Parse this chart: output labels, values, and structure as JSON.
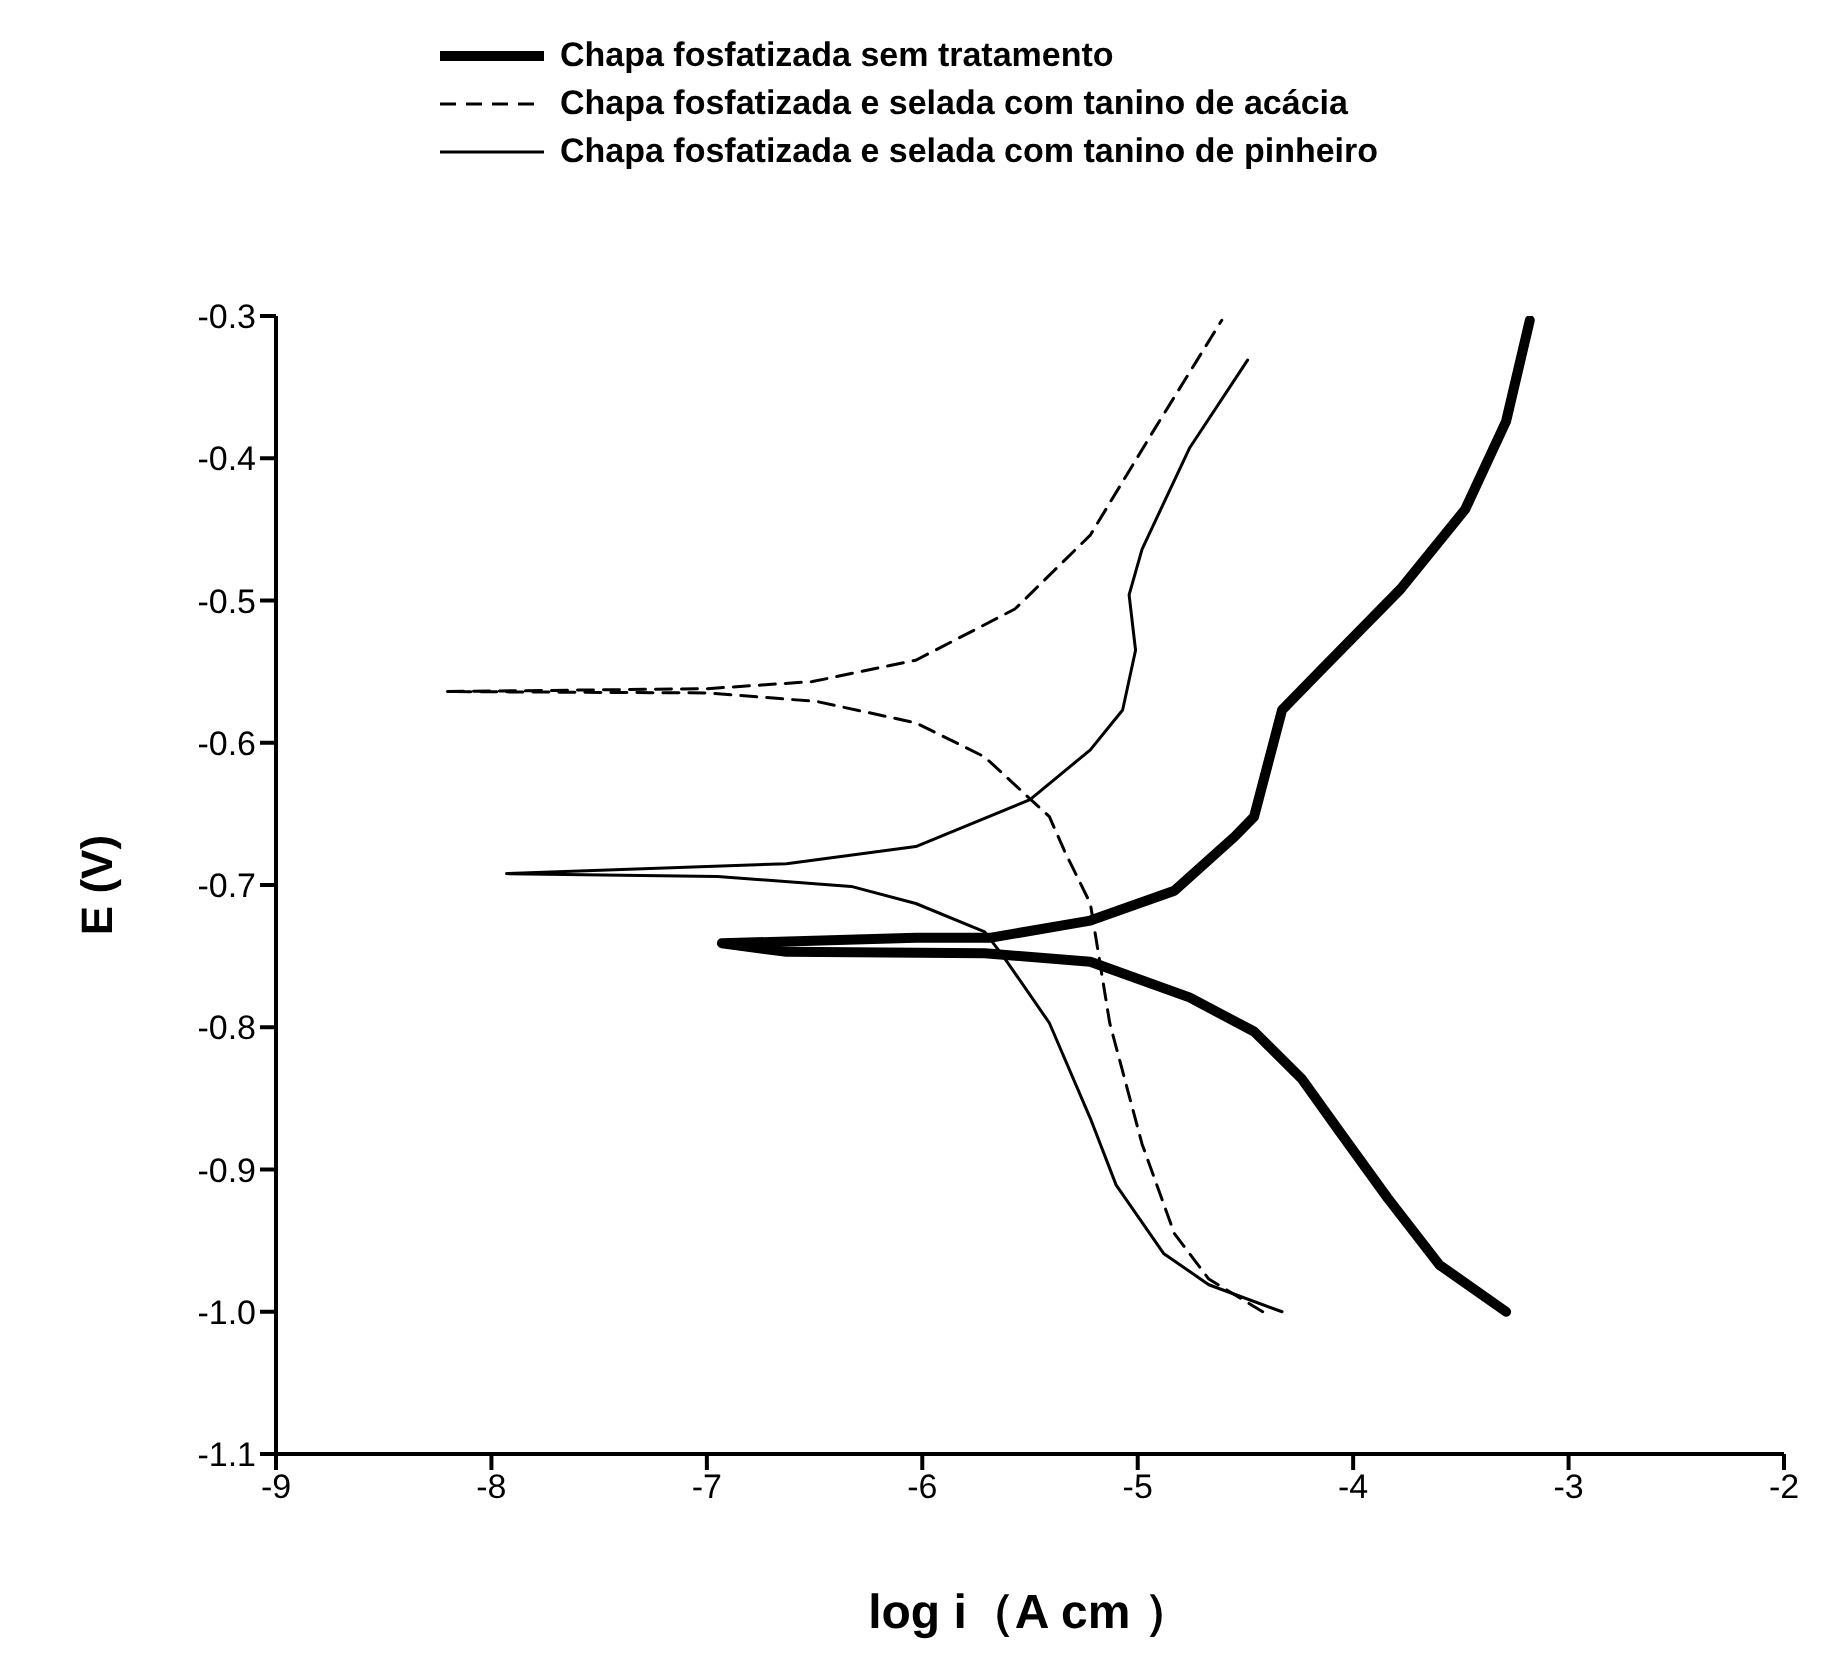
{
  "chart_data": {
    "type": "line",
    "xlabel": "log i（A cm  ）",
    "ylabel": "E (V)",
    "xlim": [
      -9,
      -2
    ],
    "xticks": [
      -9,
      -8,
      -7,
      -6,
      -5,
      -4,
      -3,
      -2
    ],
    "ylim": [
      -1.1,
      -0.3
    ],
    "yticks": [
      {
        "value": -1.1,
        "label": "-1.1"
      },
      {
        "value": -1,
        "label": "-1.0"
      },
      {
        "value": -0.9,
        "label": "-0.9"
      },
      {
        "value": -0.8,
        "label": "-0.8"
      },
      {
        "value": -0.7,
        "label": "-0.7"
      },
      {
        "value": -0.6,
        "label": "-0.6"
      },
      {
        "value": -0.5,
        "label": "-0.5"
      },
      {
        "value": -0.4,
        "label": "-0.4"
      },
      {
        "value": -0.3,
        "label": "-0.3"
      }
    ],
    "grid": false,
    "legend": "top",
    "marker": "none",
    "series": [
      {
        "name": "Chapa fosfatizada sem tratamento",
        "color": "#000000",
        "line_style": "solid",
        "x": [
          -3.29,
          -3.6,
          -3.84,
          -4.06,
          -4.24,
          -4.46,
          -4.76,
          -5.22,
          -5.71,
          -6.63,
          -6.93,
          -6.03,
          -5.68,
          -5.22,
          -4.83,
          -4.55,
          -4.46,
          -4.33,
          -4.15,
          -3.78,
          -3.48,
          -3.29,
          -3.18
        ],
        "values": [
          -1.0,
          -0.967,
          -0.92,
          -0.874,
          -0.836,
          -0.803,
          -0.779,
          -0.754,
          -0.748,
          -0.747,
          -0.741,
          -0.737,
          -0.737,
          -0.725,
          -0.704,
          -0.666,
          -0.652,
          -0.577,
          -0.549,
          -0.492,
          -0.436,
          -0.374,
          -0.303
        ]
      },
      {
        "name": "Chapa fosfatizada e selada com tanino de acácia",
        "color": "#000000",
        "line_style": "dashed",
        "x": [
          -4.42,
          -4.67,
          -4.83,
          -4.98,
          -5.13,
          -5.22,
          -5.34,
          -5.41,
          -5.71,
          -6.03,
          -6.49,
          -7.0,
          -8.21,
          -7.0,
          -6.51,
          -6.03,
          -5.57,
          -5.22,
          -4.92,
          -4.61
        ],
        "values": [
          -1.0,
          -0.977,
          -0.945,
          -0.882,
          -0.797,
          -0.713,
          -0.676,
          -0.652,
          -0.61,
          -0.586,
          -0.571,
          -0.565,
          -0.564,
          -0.562,
          -0.557,
          -0.542,
          -0.506,
          -0.454,
          -0.379,
          -0.303
        ]
      },
      {
        "name": "Chapa fosfatizada e selada com tanino de pinheiro",
        "color": "#000000",
        "line_style": "solid",
        "x": [
          -4.33,
          -4.67,
          -4.88,
          -5.1,
          -5.22,
          -5.41,
          -5.62,
          -5.71,
          -6.03,
          -6.33,
          -6.95,
          -7.93,
          -6.63,
          -6.03,
          -5.5,
          -5.22,
          -5.07,
          -5.01,
          -5.04,
          -4.98,
          -4.76,
          -4.49
        ],
        "values": [
          -1.0,
          -0.981,
          -0.959,
          -0.911,
          -0.864,
          -0.797,
          -0.751,
          -0.733,
          -0.713,
          -0.701,
          -0.694,
          -0.692,
          -0.685,
          -0.673,
          -0.64,
          -0.605,
          -0.577,
          -0.535,
          -0.496,
          -0.464,
          -0.393,
          -0.331
        ]
      }
    ]
  }
}
